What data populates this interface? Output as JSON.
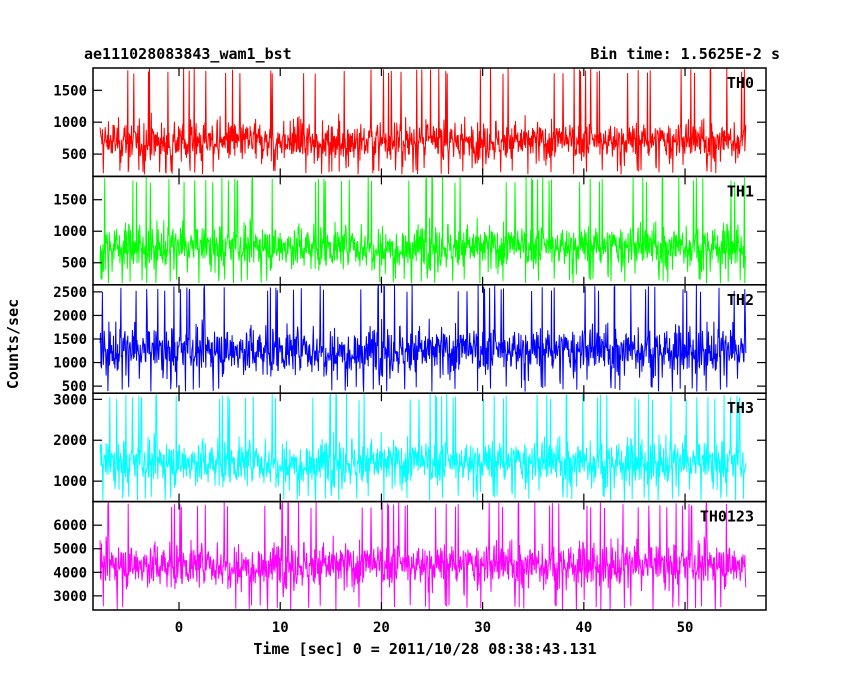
{
  "chart_data": {
    "type": "line",
    "title_left": "ae111028083843_wam1_bst",
    "title_right": "Bin time: 1.5625E-2 s",
    "xlabel": "Time [sec] 0 = 2011/10/28 08:38:43.131",
    "ylabel": "Counts/sec",
    "xlim": [
      -8.5,
      58
    ],
    "x_range": [
      -7.8,
      56
    ],
    "xticks": [
      0,
      10,
      20,
      30,
      40,
      50
    ],
    "panels": [
      {
        "name": "TH0",
        "color": "#ff0000",
        "ylim": [
          150,
          1850
        ],
        "yticks": [
          500,
          1000,
          1500
        ],
        "min": 180,
        "max": 1850,
        "mean": 700,
        "spread": 230
      },
      {
        "name": "TH1",
        "color": "#00ff00",
        "ylim": [
          150,
          1870
        ],
        "yticks": [
          500,
          1000,
          1500
        ],
        "min": 170,
        "max": 1870,
        "mean": 750,
        "spread": 260
      },
      {
        "name": "TH2",
        "color": "#0000ff",
        "ylim": [
          350,
          2650
        ],
        "yticks": [
          500,
          1000,
          1500,
          2000,
          2500
        ],
        "min": 380,
        "max": 2650,
        "mean": 1250,
        "spread": 380
      },
      {
        "name": "TH3",
        "color": "#00ffff",
        "ylim": [
          500,
          3150
        ],
        "yticks": [
          1000,
          2000,
          3000
        ],
        "min": 520,
        "max": 3150,
        "mean": 1450,
        "spread": 420
      },
      {
        "name": "TH0123",
        "color": "#ff00ff",
        "ylim": [
          2400,
          7000
        ],
        "yticks": [
          3000,
          4000,
          5000,
          6000
        ],
        "min": 2400,
        "max": 7000,
        "mean": 4300,
        "spread": 700
      }
    ]
  }
}
